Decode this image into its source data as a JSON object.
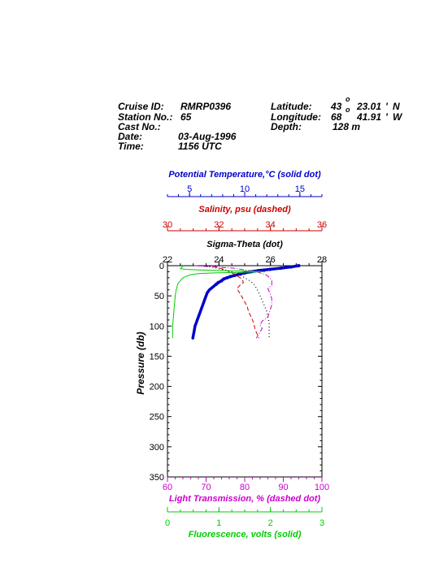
{
  "header": {
    "left": [
      {
        "label": "Cruise ID:",
        "value": "RMRP0396"
      },
      {
        "label": "Station No.:",
        "value": "65"
      },
      {
        "label": "Cast No.:",
        "value": ""
      },
      {
        "label": "Date:",
        "value": "03-Aug-1996"
      },
      {
        "label": "Time:",
        "value": "1156 UTC"
      }
    ],
    "right": [
      {
        "label": "Latitude:",
        "deg": "43",
        "min": "23.01",
        "hemi": "N"
      },
      {
        "label": "Longitude:",
        "deg": "68",
        "min": "41.91",
        "hemi": "W"
      },
      {
        "label": "Depth:",
        "value": "128 m"
      }
    ],
    "degree_symbol": "o",
    "minute_symbol": "'"
  },
  "colors": {
    "temperature": "#0000cc",
    "salinity": "#cc0000",
    "sigma": "#000000",
    "transmission": "#cc00cc",
    "fluorescence": "#00cc00",
    "axes": "#000000"
  },
  "chart_data": {
    "type": "line",
    "y_axis": {
      "label": "Pressure (db)",
      "range": [
        0,
        350
      ],
      "ticks": [
        0,
        50,
        100,
        150,
        200,
        250,
        300,
        350
      ],
      "inverted": true
    },
    "x_axes": [
      {
        "id": "temperature",
        "label": "Potential Temperature,°C (solid dot)",
        "position": "top",
        "range": [
          3,
          17
        ],
        "ticks": [
          5,
          10,
          15
        ],
        "tick_labels": [
          "5",
          "10",
          "15"
        ]
      },
      {
        "id": "salinity",
        "label": "Salinity, psu  (dashed)",
        "position": "top",
        "range": [
          30,
          36
        ],
        "ticks": [
          30,
          32,
          34,
          36
        ],
        "tick_labels": [
          "30",
          "32",
          "34",
          "36"
        ]
      },
      {
        "id": "sigma",
        "label": "Sigma-Theta (dot)",
        "position": "top",
        "range": [
          22,
          28
        ],
        "ticks": [
          22,
          24,
          26,
          28
        ],
        "tick_labels": [
          "22",
          "24",
          "26",
          "28"
        ]
      },
      {
        "id": "transmission",
        "label": "Light Transmission, % (dashed dot)",
        "position": "bottom",
        "range": [
          60,
          100
        ],
        "ticks": [
          60,
          70,
          80,
          90,
          100
        ],
        "tick_labels": [
          "60",
          "70",
          "80",
          "90",
          "100"
        ]
      },
      {
        "id": "fluorescence",
        "label": "Fluorescence, volts (solid)",
        "position": "bottom",
        "range": [
          0,
          3
        ],
        "ticks": [
          0,
          1,
          2,
          3
        ],
        "tick_labels": [
          "0",
          "1",
          "2",
          "3"
        ]
      }
    ],
    "series": [
      {
        "axis": "temperature",
        "style": "solid-dot",
        "points": [
          [
            14.9,
            0
          ],
          [
            14.2,
            2
          ],
          [
            13.3,
            4
          ],
          [
            12.3,
            6
          ],
          [
            11.3,
            8
          ],
          [
            10.6,
            10
          ],
          [
            10.0,
            12
          ],
          [
            9.5,
            14
          ],
          [
            9.1,
            16
          ],
          [
            8.7,
            18
          ],
          [
            8.4,
            20
          ],
          [
            8.1,
            22
          ],
          [
            7.9,
            25
          ],
          [
            7.6,
            28
          ],
          [
            7.4,
            31
          ],
          [
            7.2,
            34
          ],
          [
            7.0,
            37
          ],
          [
            6.8,
            40
          ],
          [
            6.6,
            45
          ],
          [
            6.5,
            50
          ],
          [
            6.4,
            55
          ],
          [
            6.3,
            60
          ],
          [
            6.2,
            65
          ],
          [
            6.1,
            70
          ],
          [
            6.0,
            75
          ],
          [
            5.9,
            80
          ],
          [
            5.8,
            85
          ],
          [
            5.7,
            90
          ],
          [
            5.6,
            95
          ],
          [
            5.5,
            100
          ],
          [
            5.45,
            105
          ],
          [
            5.4,
            110
          ],
          [
            5.35,
            115
          ],
          [
            5.3,
            120
          ]
        ]
      },
      {
        "axis": "salinity",
        "style": "dashed",
        "points": [
          [
            31.8,
            0
          ],
          [
            31.9,
            2
          ],
          [
            32.1,
            5
          ],
          [
            32.3,
            8
          ],
          [
            32.5,
            12
          ],
          [
            32.7,
            17
          ],
          [
            32.9,
            22
          ],
          [
            32.95,
            28
          ],
          [
            32.8,
            33
          ],
          [
            32.7,
            38
          ],
          [
            32.8,
            45
          ],
          [
            32.9,
            52
          ],
          [
            33.0,
            60
          ],
          [
            33.1,
            68
          ],
          [
            33.15,
            76
          ],
          [
            33.25,
            85
          ],
          [
            33.35,
            95
          ],
          [
            33.4,
            105
          ],
          [
            33.5,
            115
          ],
          [
            33.55,
            120
          ]
        ]
      },
      {
        "axis": "sigma",
        "style": "dotted",
        "points": [
          [
            23.5,
            0
          ],
          [
            23.8,
            3
          ],
          [
            24.1,
            6
          ],
          [
            24.5,
            10
          ],
          [
            24.8,
            15
          ],
          [
            25.0,
            20
          ],
          [
            25.2,
            25
          ],
          [
            25.35,
            30
          ],
          [
            25.45,
            37
          ],
          [
            25.55,
            45
          ],
          [
            25.65,
            55
          ],
          [
            25.75,
            65
          ],
          [
            25.85,
            75
          ],
          [
            25.9,
            85
          ],
          [
            25.95,
            95
          ],
          [
            25.95,
            105
          ],
          [
            25.95,
            115
          ],
          [
            25.95,
            120
          ]
        ]
      },
      {
        "axis": "transmission",
        "style": "dashed-dot",
        "points": [
          [
            67,
            0
          ],
          [
            72,
            2
          ],
          [
            77,
            4
          ],
          [
            80,
            7
          ],
          [
            83,
            10
          ],
          [
            85.5,
            15
          ],
          [
            86.5,
            20
          ],
          [
            87,
            25
          ],
          [
            87,
            32
          ],
          [
            86,
            38
          ],
          [
            86.5,
            45
          ],
          [
            87,
            55
          ],
          [
            87,
            65
          ],
          [
            86.5,
            75
          ],
          [
            86,
            85
          ],
          [
            84.5,
            92
          ],
          [
            84,
            98
          ],
          [
            84.5,
            104
          ],
          [
            84,
            110
          ],
          [
            83.5,
            115
          ],
          [
            83,
            120
          ]
        ]
      },
      {
        "axis": "fluorescence",
        "style": "solid",
        "points": [
          [
            0.3,
            0
          ],
          [
            0.28,
            3
          ],
          [
            0.25,
            5
          ],
          [
            0.35,
            6
          ],
          [
            0.6,
            7
          ],
          [
            1.0,
            8
          ],
          [
            1.6,
            9
          ],
          [
            1.9,
            10
          ],
          [
            1.4,
            11
          ],
          [
            0.9,
            12
          ],
          [
            0.6,
            13
          ],
          [
            0.45,
            15
          ],
          [
            0.35,
            18
          ],
          [
            0.3,
            20
          ],
          [
            0.25,
            25
          ],
          [
            0.2,
            30
          ],
          [
            0.17,
            40
          ],
          [
            0.15,
            50
          ],
          [
            0.14,
            60
          ],
          [
            0.13,
            70
          ],
          [
            0.12,
            80
          ],
          [
            0.11,
            90
          ],
          [
            0.1,
            100
          ],
          [
            0.1,
            110
          ],
          [
            0.1,
            120
          ]
        ]
      }
    ]
  }
}
